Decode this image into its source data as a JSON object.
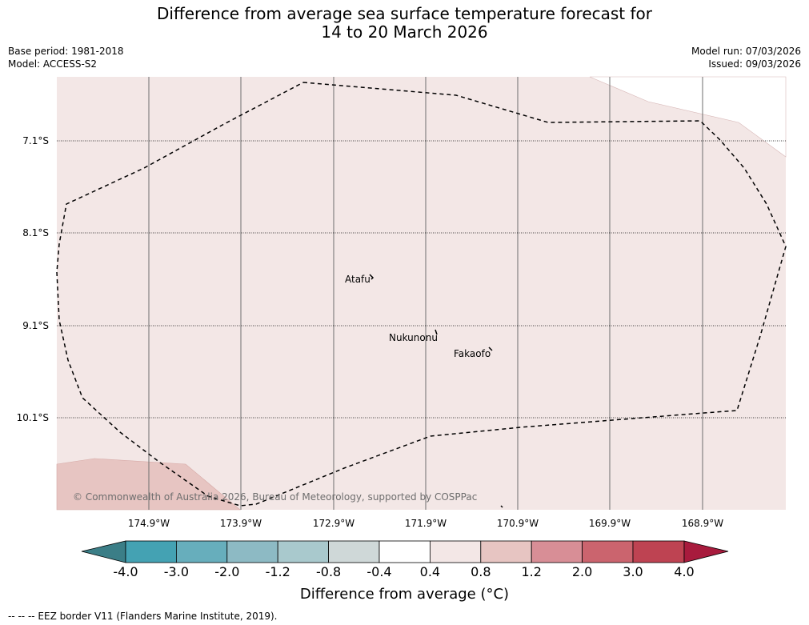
{
  "title": {
    "line1": "Difference from average sea surface temperature forecast for",
    "line2": "14 to 20 March 2026"
  },
  "meta": {
    "base_period": "Base period: 1981-2018",
    "model": "Model: ACCESS-S2",
    "model_run": "Model run: 07/03/2026",
    "issued": "Issued: 09/03/2026"
  },
  "map": {
    "latitudes": [
      "7.1°S",
      "8.1°S",
      "9.1°S",
      "10.1°S"
    ],
    "longitudes": [
      "174.9°W",
      "173.9°W",
      "172.9°W",
      "171.9°W",
      "170.9°W",
      "169.9°W",
      "168.9°W"
    ],
    "places": [
      "Atafu",
      "Nukunonu",
      "Fakaofo"
    ],
    "copyright": "© Commonwealth of Australia 2026, Bureau of Meteorology, supported by COSPPac",
    "colors": {
      "anomaly_0_4_to_0_8": "#f3e7e6",
      "anomaly_0_8_to_1_2": "#e7c5c2",
      "eez_border": "#000000",
      "gridline": "#6e6e6e"
    }
  },
  "colorbar": {
    "ticks": [
      "-4.0",
      "-3.0",
      "-2.0",
      "-1.2",
      "-0.8",
      "-0.4",
      "0.4",
      "0.8",
      "1.2",
      "2.0",
      "3.0",
      "4.0"
    ],
    "colors": [
      "#3b7e87",
      "#44a2b3",
      "#67aebc",
      "#8dbac4",
      "#a9c9cd",
      "#cfd8d8",
      "#ffffff",
      "#f3e7e6",
      "#e7c5c2",
      "#d88e96",
      "#cb646e",
      "#be4352",
      "#a81b3d"
    ],
    "label": "Difference from average (°C)"
  },
  "footer": {
    "legend": "-- -- -- EEZ border V11 (Flanders Marine Institute, 2019)."
  }
}
